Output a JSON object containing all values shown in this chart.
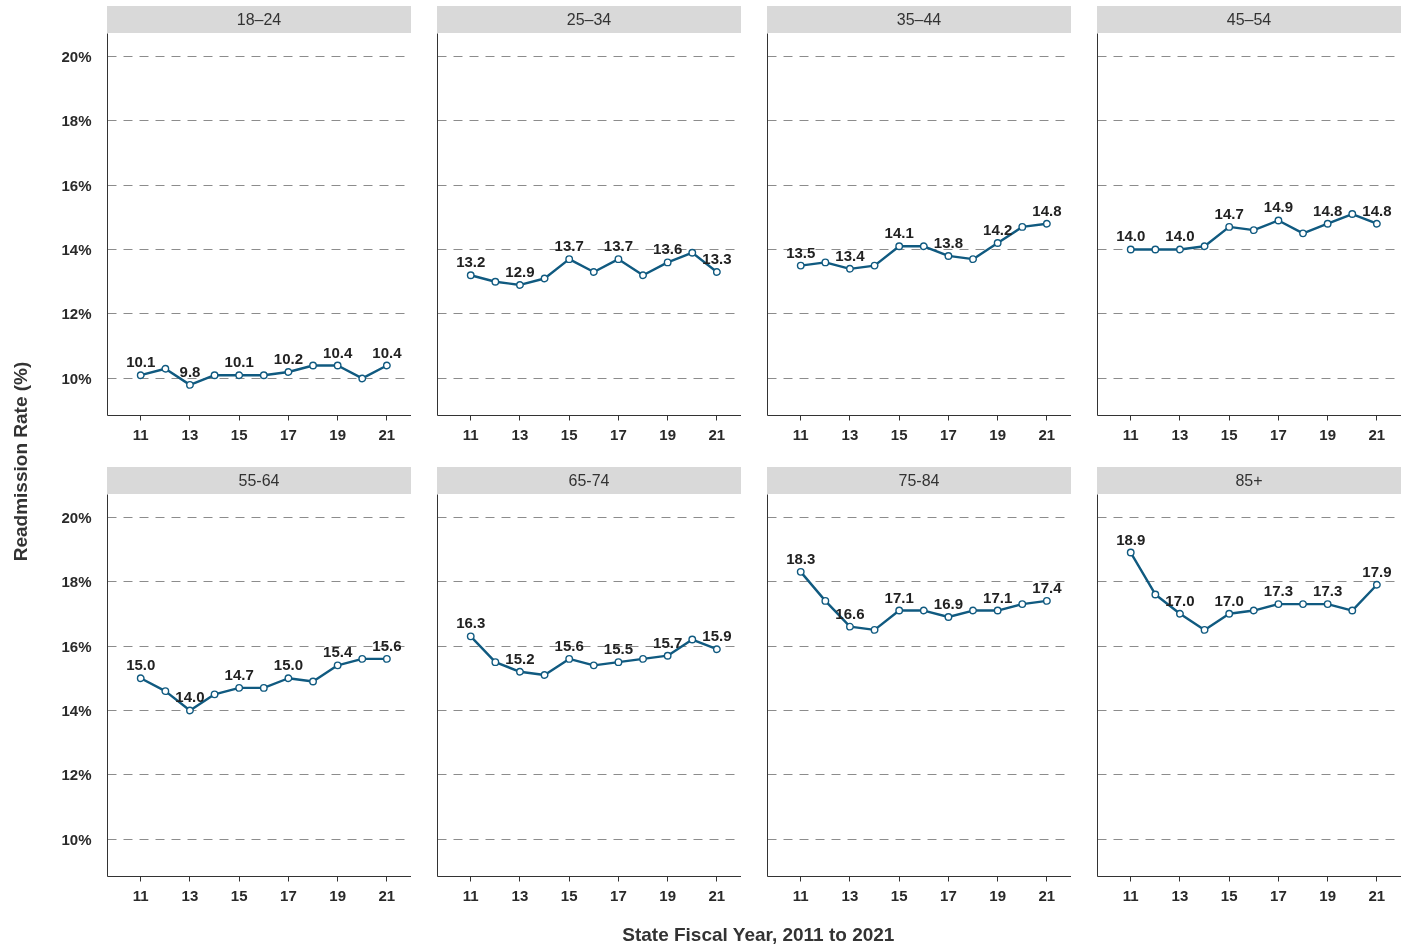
{
  "chart_data": [
    {
      "type": "line",
      "title": "18–24",
      "ylabel": "Readmission Rate (%)",
      "x": [
        11,
        12,
        13,
        14,
        15,
        16,
        17,
        18,
        19,
        20,
        21
      ],
      "values": [
        10.1,
        10.3,
        9.8,
        10.1,
        10.1,
        10.1,
        10.2,
        10.4,
        10.4,
        10.0,
        10.4
      ],
      "value_labels": [
        "10.1",
        null,
        "9.8",
        null,
        "10.1",
        null,
        "10.2",
        null,
        "10.4",
        null,
        "10.4"
      ],
      "color": "#105a80",
      "marker": "circle",
      "xlim": [
        9.65,
        22
      ],
      "xticks": [
        11,
        13,
        15,
        17,
        19,
        21
      ],
      "ylim": [
        8.85,
        20.7
      ],
      "yticks": [
        {
          "value": 10,
          "label": "10%"
        },
        {
          "value": 12,
          "label": "12%"
        },
        {
          "value": 14,
          "label": "14%"
        },
        {
          "value": 16,
          "label": "16%"
        },
        {
          "value": 18,
          "label": "18%"
        },
        {
          "value": 20,
          "label": "20%"
        }
      ],
      "grid": "y"
    },
    {
      "type": "line",
      "title": "25–34",
      "x": [
        11,
        12,
        13,
        14,
        15,
        16,
        17,
        18,
        19,
        20,
        21
      ],
      "values": [
        13.2,
        13.0,
        12.9,
        13.1,
        13.7,
        13.3,
        13.7,
        13.2,
        13.6,
        13.9,
        13.3
      ],
      "value_labels": [
        "13.2",
        null,
        "12.9",
        null,
        "13.7",
        null,
        "13.7",
        null,
        "13.6",
        null,
        "13.3"
      ],
      "color": "#105a80",
      "marker": "circle",
      "xlim": [
        9.65,
        22
      ],
      "xticks": [
        11,
        13,
        15,
        17,
        19,
        21
      ],
      "ylim": [
        8.85,
        20.7
      ],
      "yticks": [
        {
          "value": 10,
          "label": null
        },
        {
          "value": 12,
          "label": null
        },
        {
          "value": 14,
          "label": null
        },
        {
          "value": 16,
          "label": null
        },
        {
          "value": 18,
          "label": null
        },
        {
          "value": 20,
          "label": null
        }
      ],
      "grid": "y"
    },
    {
      "type": "line",
      "title": "35–44",
      "x": [
        11,
        12,
        13,
        14,
        15,
        16,
        17,
        18,
        19,
        20,
        21
      ],
      "values": [
        13.5,
        13.6,
        13.4,
        13.5,
        14.1,
        14.1,
        13.8,
        13.7,
        14.2,
        14.7,
        14.8
      ],
      "value_labels": [
        "13.5",
        null,
        "13.4",
        null,
        "14.1",
        null,
        "13.8",
        null,
        "14.2",
        null,
        "14.8"
      ],
      "color": "#105a80",
      "marker": "circle",
      "xlim": [
        9.65,
        22
      ],
      "xticks": [
        11,
        13,
        15,
        17,
        19,
        21
      ],
      "ylim": [
        8.85,
        20.7
      ],
      "yticks": [
        {
          "value": 10,
          "label": null
        },
        {
          "value": 12,
          "label": null
        },
        {
          "value": 14,
          "label": null
        },
        {
          "value": 16,
          "label": null
        },
        {
          "value": 18,
          "label": null
        },
        {
          "value": 20,
          "label": null
        }
      ],
      "grid": "y"
    },
    {
      "type": "line",
      "title": "45–54",
      "x": [
        11,
        12,
        13,
        14,
        15,
        16,
        17,
        18,
        19,
        20,
        21
      ],
      "values": [
        14.0,
        14.0,
        14.0,
        14.1,
        14.7,
        14.6,
        14.9,
        14.5,
        14.8,
        15.1,
        14.8
      ],
      "value_labels": [
        "14.0",
        null,
        "14.0",
        null,
        "14.7",
        null,
        "14.9",
        null,
        "14.8",
        null,
        "14.8"
      ],
      "color": "#105a80",
      "marker": "circle",
      "xlim": [
        9.65,
        22
      ],
      "xticks": [
        11,
        13,
        15,
        17,
        19,
        21
      ],
      "ylim": [
        8.85,
        20.7
      ],
      "yticks": [
        {
          "value": 10,
          "label": null
        },
        {
          "value": 12,
          "label": null
        },
        {
          "value": 14,
          "label": null
        },
        {
          "value": 16,
          "label": null
        },
        {
          "value": 18,
          "label": null
        },
        {
          "value": 20,
          "label": null
        }
      ],
      "grid": "y"
    },
    {
      "type": "line",
      "title": "55-64",
      "x": [
        11,
        12,
        13,
        14,
        15,
        16,
        17,
        18,
        19,
        20,
        21
      ],
      "values": [
        15.0,
        14.6,
        14.0,
        14.5,
        14.7,
        14.7,
        15.0,
        14.9,
        15.4,
        15.6,
        15.6
      ],
      "value_labels": [
        "15.0",
        null,
        "14.0",
        null,
        "14.7",
        null,
        "15.0",
        null,
        "15.4",
        null,
        "15.6"
      ],
      "color": "#105a80",
      "marker": "circle",
      "xlim": [
        9.65,
        22
      ],
      "xticks": [
        11,
        13,
        15,
        17,
        19,
        21
      ],
      "ylim": [
        8.85,
        20.7
      ],
      "yticks": [
        {
          "value": 10,
          "label": "10%"
        },
        {
          "value": 12,
          "label": "12%"
        },
        {
          "value": 14,
          "label": "14%"
        },
        {
          "value": 16,
          "label": "16%"
        },
        {
          "value": 18,
          "label": "18%"
        },
        {
          "value": 20,
          "label": "20%"
        }
      ],
      "grid": "y"
    },
    {
      "type": "line",
      "title": "65-74",
      "x": [
        11,
        12,
        13,
        14,
        15,
        16,
        17,
        18,
        19,
        20,
        21
      ],
      "values": [
        16.3,
        15.5,
        15.2,
        15.1,
        15.6,
        15.4,
        15.5,
        15.6,
        15.7,
        16.2,
        15.9
      ],
      "value_labels": [
        "16.3",
        null,
        "15.2",
        null,
        "15.6",
        null,
        "15.5",
        null,
        "15.7",
        null,
        "15.9"
      ],
      "color": "#105a80",
      "marker": "circle",
      "xlim": [
        9.65,
        22
      ],
      "xticks": [
        11,
        13,
        15,
        17,
        19,
        21
      ],
      "ylim": [
        8.85,
        20.7
      ],
      "yticks": [
        {
          "value": 10,
          "label": null
        },
        {
          "value": 12,
          "label": null
        },
        {
          "value": 14,
          "label": null
        },
        {
          "value": 16,
          "label": null
        },
        {
          "value": 18,
          "label": null
        },
        {
          "value": 20,
          "label": null
        }
      ],
      "grid": "y"
    },
    {
      "type": "line",
      "title": "75-84",
      "xlabel": "State Fiscal Year, 2011 to 2021",
      "x": [
        11,
        12,
        13,
        14,
        15,
        16,
        17,
        18,
        19,
        20,
        21
      ],
      "values": [
        18.3,
        17.4,
        16.6,
        16.5,
        17.1,
        17.1,
        16.9,
        17.1,
        17.1,
        17.3,
        17.4
      ],
      "value_labels": [
        "18.3",
        null,
        "16.6",
        null,
        "17.1",
        null,
        "16.9",
        null,
        "17.1",
        null,
        "17.4"
      ],
      "color": "#105a80",
      "marker": "circle",
      "xlim": [
        9.65,
        22
      ],
      "xticks": [
        11,
        13,
        15,
        17,
        19,
        21
      ],
      "ylim": [
        8.85,
        20.7
      ],
      "yticks": [
        {
          "value": 10,
          "label": null
        },
        {
          "value": 12,
          "label": null
        },
        {
          "value": 14,
          "label": null
        },
        {
          "value": 16,
          "label": null
        },
        {
          "value": 18,
          "label": null
        },
        {
          "value": 20,
          "label": null
        }
      ],
      "grid": "y"
    },
    {
      "type": "line",
      "title": "85+",
      "x": [
        11,
        12,
        13,
        14,
        15,
        16,
        17,
        18,
        19,
        20,
        21
      ],
      "values": [
        18.9,
        17.6,
        17.0,
        16.5,
        17.0,
        17.1,
        17.3,
        17.3,
        17.3,
        17.1,
        17.9
      ],
      "value_labels": [
        "18.9",
        null,
        "17.0",
        null,
        "17.0",
        null,
        "17.3",
        null,
        "17.3",
        null,
        "17.9"
      ],
      "color": "#105a80",
      "marker": "circle",
      "xlim": [
        9.65,
        22
      ],
      "xticks": [
        11,
        13,
        15,
        17,
        19,
        21
      ],
      "ylim": [
        8.85,
        20.7
      ],
      "yticks": [
        {
          "value": 10,
          "label": null
        },
        {
          "value": 12,
          "label": null
        },
        {
          "value": 14,
          "label": null
        },
        {
          "value": 16,
          "label": null
        },
        {
          "value": 18,
          "label": null
        },
        {
          "value": 20,
          "label": null
        }
      ],
      "grid": "y"
    }
  ]
}
